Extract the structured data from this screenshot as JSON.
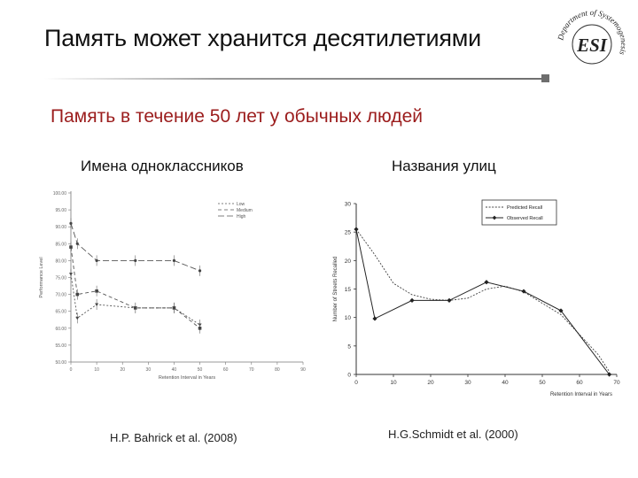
{
  "slide": {
    "title": "Память может хранится десятилетиями",
    "subtitle": "Память в течение 50 лет у обычных людей"
  },
  "logo": {
    "letters": "ESI",
    "ring_text": "Department of Systemogenesis"
  },
  "chart_data": [
    {
      "type": "line",
      "title": "Имена одноклассников",
      "caption": "H.P. Bahrick et al. (2008)",
      "xlabel": "Retention Interval in Years",
      "ylabel": "Performance Level",
      "x": [
        0,
        2.5,
        10,
        25,
        40,
        50
      ],
      "x_ticks": [
        "0",
        "10",
        "20",
        "30",
        "40",
        "50",
        "60",
        "70",
        "80",
        "90"
      ],
      "xlim": [
        0,
        90
      ],
      "y_ticks": [
        "50.00",
        "55.00",
        "60.00",
        "65.00",
        "70.00",
        "75.00",
        "80.00",
        "85.00",
        "90.00",
        "95.00",
        "100.00"
      ],
      "ylim": [
        50,
        100
      ],
      "series": [
        {
          "name": "Low",
          "values": [
            76,
            63,
            67,
            66,
            66,
            61
          ]
        },
        {
          "name": "Medium",
          "values": [
            84,
            70,
            71,
            66,
            66,
            60
          ]
        },
        {
          "name": "High",
          "values": [
            91,
            85,
            80,
            80,
            80,
            77
          ]
        }
      ],
      "legend": "top-right",
      "grid": false
    },
    {
      "type": "line",
      "title": "Названия улиц",
      "caption": "H.G.Schmidt et al. (2000)",
      "xlabel": "Retention Interval in Years",
      "ylabel": "Number of Streets Recalled",
      "x_ticks": [
        "0",
        "10",
        "20",
        "30",
        "40",
        "50",
        "60",
        "70"
      ],
      "xlim": [
        0,
        70
      ],
      "y_ticks": [
        "0",
        "5",
        "10",
        "15",
        "20",
        "25",
        "30"
      ],
      "ylim": [
        0,
        30
      ],
      "series": [
        {
          "name": "Predicted Recall",
          "x": [
            0,
            5,
            10,
            15,
            20,
            25,
            30,
            35,
            40,
            45,
            50,
            55,
            60,
            65,
            68
          ],
          "values": [
            25.5,
            21,
            16,
            14,
            13.2,
            13,
            13.4,
            15,
            15.5,
            14.5,
            12.5,
            10.5,
            7,
            3.5,
            0.5
          ]
        },
        {
          "name": "Observed Recall",
          "x": [
            0,
            5,
            15,
            25,
            35,
            45,
            55,
            68
          ],
          "values": [
            25.5,
            9.8,
            13,
            13,
            16.2,
            14.6,
            11.2,
            0
          ]
        }
      ],
      "legend": "top-right",
      "grid": false
    }
  ]
}
